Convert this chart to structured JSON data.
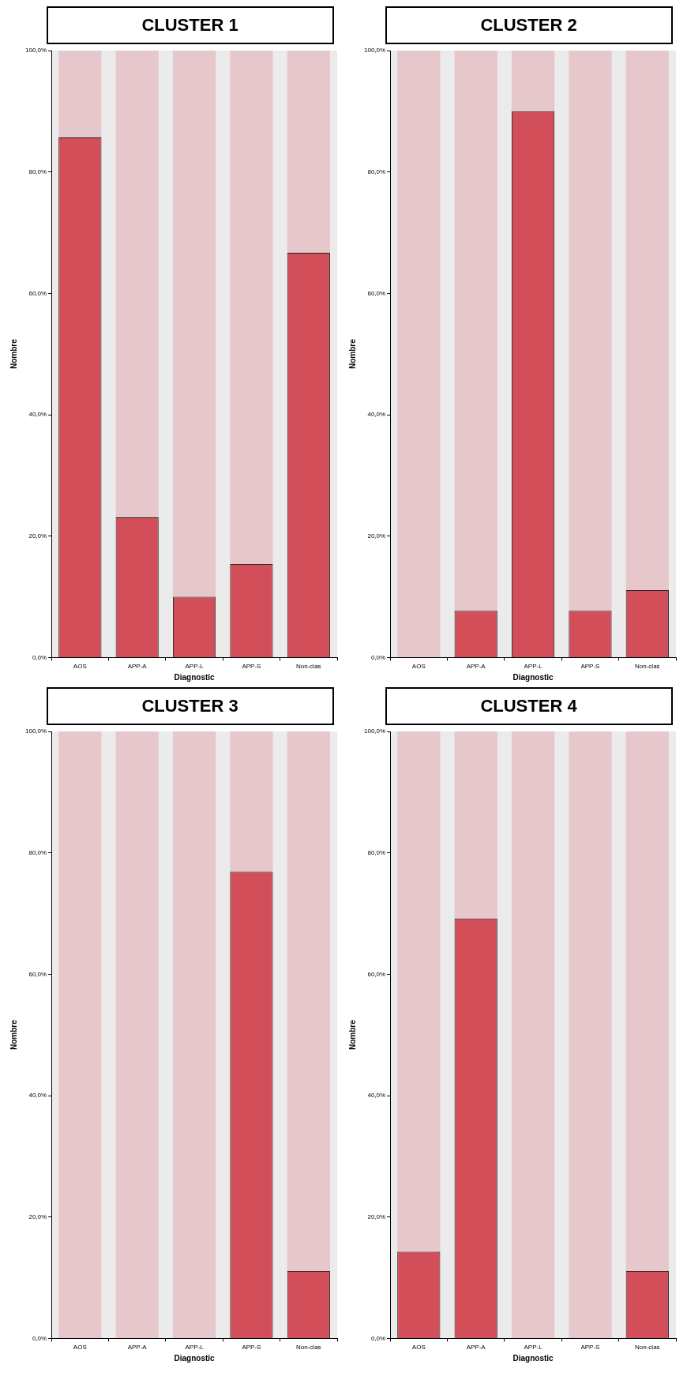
{
  "chart_data": [
    {
      "type": "bar",
      "title": "CLUSTER 1",
      "xlabel": "Diagnostic",
      "ylabel": "Nombre",
      "categories": [
        "AOS",
        "APP-A",
        "APP-L",
        "APP-S",
        "Non-clas"
      ],
      "stacked": true,
      "legend": false,
      "grid": false,
      "series": [
        {
          "color": "#d24f5a",
          "values": [
            85.7,
            23.1,
            10.0,
            15.4,
            66.7
          ]
        },
        {
          "color": "#e6c8cc",
          "values": [
            14.3,
            76.9,
            90.0,
            84.6,
            33.3
          ]
        }
      ],
      "ylim": [
        0,
        100
      ],
      "yticks": [
        {
          "value": 0,
          "label": "0,0%"
        },
        {
          "value": 20,
          "label": "20,0%"
        },
        {
          "value": 40,
          "label": "40,0%"
        },
        {
          "value": 60,
          "label": "60,0%"
        },
        {
          "value": 80,
          "label": "80,0%"
        },
        {
          "value": 100,
          "label": "100,0%"
        }
      ]
    },
    {
      "type": "bar",
      "title": "CLUSTER 2",
      "xlabel": "Diagnostic",
      "ylabel": "Nombre",
      "categories": [
        "AOS",
        "APP-A",
        "APP-L",
        "APP-S",
        "Non-clas"
      ],
      "stacked": true,
      "legend": false,
      "grid": false,
      "series": [
        {
          "color": "#d24f5a",
          "values": [
            0,
            7.7,
            90.0,
            7.7,
            11.1
          ]
        },
        {
          "color": "#e6c8cc",
          "values": [
            100,
            92.3,
            10.0,
            92.3,
            88.9
          ]
        }
      ],
      "ylim": [
        0,
        100
      ],
      "yticks": [
        {
          "value": 0,
          "label": "0,0%"
        },
        {
          "value": 20,
          "label": "20,0%"
        },
        {
          "value": 40,
          "label": "40,0%"
        },
        {
          "value": 60,
          "label": "60,0%"
        },
        {
          "value": 80,
          "label": "80,0%"
        },
        {
          "value": 100,
          "label": "100,0%"
        }
      ]
    },
    {
      "type": "bar",
      "title": "CLUSTER 3",
      "xlabel": "Diagnostic",
      "ylabel": "Nombre",
      "categories": [
        "AOS",
        "APP-A",
        "APP-L",
        "APP-S",
        "Non-clas"
      ],
      "stacked": true,
      "legend": false,
      "grid": false,
      "series": [
        {
          "color": "#d24f5a",
          "values": [
            0,
            0,
            0,
            76.9,
            11.1
          ]
        },
        {
          "color": "#e6c8cc",
          "values": [
            100,
            100,
            100,
            23.1,
            88.9
          ]
        }
      ],
      "ylim": [
        0,
        100
      ],
      "yticks": [
        {
          "value": 0,
          "label": "0,0%"
        },
        {
          "value": 20,
          "label": "20,0%"
        },
        {
          "value": 40,
          "label": "40,0%"
        },
        {
          "value": 60,
          "label": "60,0%"
        },
        {
          "value": 80,
          "label": "80,0%"
        },
        {
          "value": 100,
          "label": "100,0%"
        }
      ]
    },
    {
      "type": "bar",
      "title": "CLUSTER 4",
      "xlabel": "Diagnostic",
      "ylabel": "Nombre",
      "categories": [
        "AOS",
        "APP-A",
        "APP-L",
        "APP-S",
        "Non-clas"
      ],
      "stacked": true,
      "legend": false,
      "grid": false,
      "series": [
        {
          "color": "#d24f5a",
          "values": [
            14.3,
            69.2,
            0,
            0,
            11.1
          ]
        },
        {
          "color": "#e6c8cc",
          "values": [
            85.7,
            30.8,
            100,
            100,
            88.9
          ]
        }
      ],
      "ylim": [
        0,
        100
      ],
      "yticks": [
        {
          "value": 0,
          "label": "0,0%"
        },
        {
          "value": 20,
          "label": "20,0%"
        },
        {
          "value": 40,
          "label": "40,0%"
        },
        {
          "value": 60,
          "label": "60,0%"
        },
        {
          "value": 80,
          "label": "80,0%"
        },
        {
          "value": 100,
          "label": "100,0%"
        }
      ]
    }
  ]
}
